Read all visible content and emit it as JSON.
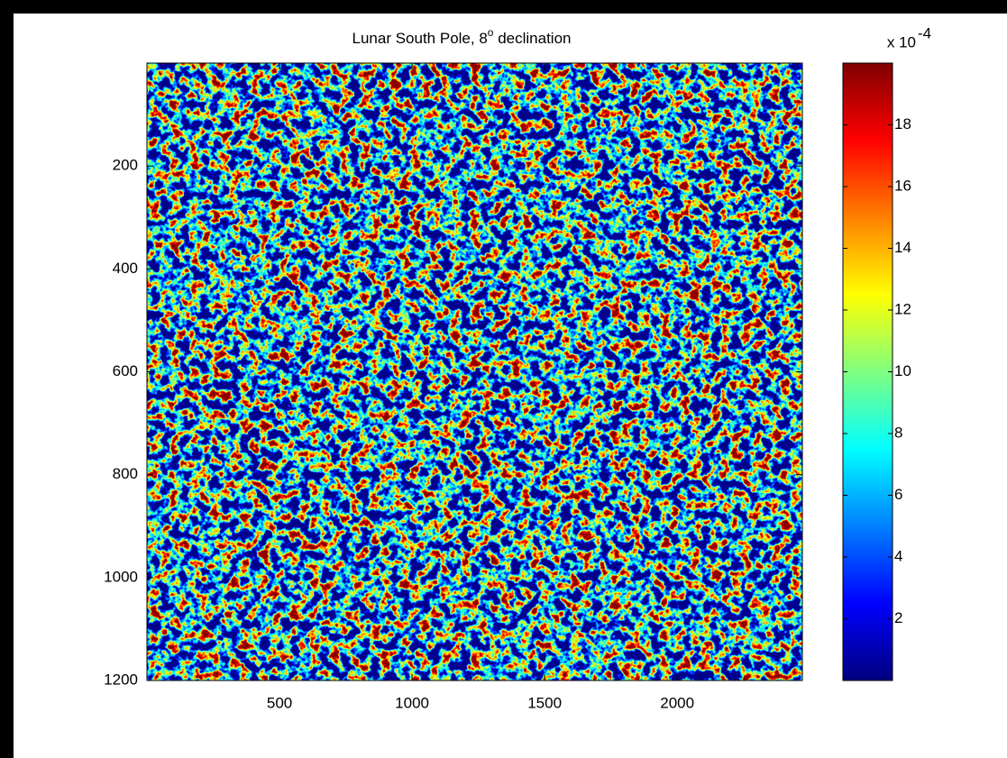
{
  "chart_data": {
    "type": "image",
    "title": "Lunar South Pole, 8",
    "title_superscript": "o",
    "title_suffix": " declination",
    "xlim": [
      0,
      2472
    ],
    "xticks": [
      500,
      1000,
      1500,
      2000
    ],
    "ylim": [
      0,
      1200
    ],
    "yticks": [
      200,
      400,
      600,
      800,
      1000,
      1200
    ],
    "y_reversed": true,
    "colormap": "jet",
    "colorbar": {
      "clim": [
        0,
        20
      ],
      "ticks": [
        2,
        4,
        6,
        8,
        10,
        12,
        14,
        16,
        18
      ],
      "multiplier_label": "x 10",
      "multiplier_exponent": "-4"
    }
  }
}
